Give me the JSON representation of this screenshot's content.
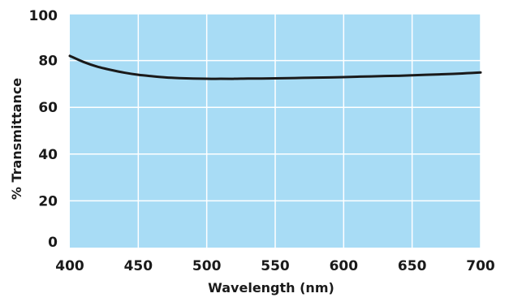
{
  "chart_data": {
    "type": "line",
    "title": "",
    "xlabel": "Wavelength (nm)",
    "ylabel": "% Transmittance",
    "xlim": [
      400,
      700
    ],
    "ylim": [
      0,
      100
    ],
    "xticks": [
      "400",
      "450",
      "500",
      "550",
      "600",
      "650",
      "700"
    ],
    "yticks": [
      "0",
      "20",
      "40",
      "60",
      "80",
      "100"
    ],
    "grid": true,
    "legend": "none",
    "colors": {
      "plot_background": "#a8dcf5",
      "grid": "#ffffff",
      "line": "#1a1a1a"
    },
    "series": [
      {
        "x": [
          400,
          410,
          420,
          430,
          440,
          450,
          460,
          470,
          480,
          490,
          500,
          510,
          520,
          530,
          540,
          550,
          560,
          570,
          580,
          590,
          600,
          610,
          620,
          630,
          640,
          650,
          660,
          670,
          680,
          690,
          700
        ],
        "values": [
          82.0,
          79.4,
          77.4,
          76.0,
          74.8,
          73.9,
          73.3,
          72.8,
          72.5,
          72.3,
          72.2,
          72.2,
          72.2,
          72.3,
          72.3,
          72.4,
          72.5,
          72.6,
          72.7,
          72.8,
          72.9,
          73.1,
          73.2,
          73.4,
          73.5,
          73.7,
          73.9,
          74.1,
          74.3,
          74.6,
          74.9
        ]
      }
    ]
  }
}
